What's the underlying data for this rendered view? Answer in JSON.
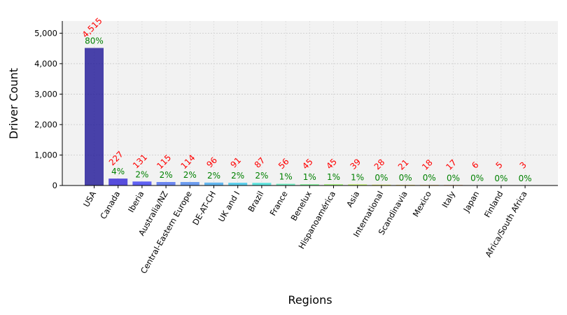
{
  "chart_data": {
    "type": "bar",
    "xlabel": "Regions",
    "ylabel": "Driver Count",
    "ylim": [
      0,
      5400
    ],
    "yticks": [
      0,
      1000,
      2000,
      3000,
      4000,
      5000
    ],
    "ytick_labels": [
      "0",
      "1,000",
      "2,000",
      "3,000",
      "4,000",
      "5,000"
    ],
    "grid": true,
    "categories": [
      "USA",
      "Canada",
      "Iberia",
      "Australia/NZ",
      "Central-Eastern Europe",
      "DE-AT-CH",
      "UK and I",
      "Brazil",
      "France",
      "Benelux",
      "Hispanoamérica",
      "Asia",
      "International",
      "Scandinavia",
      "Mexico",
      "Italy",
      "Japan",
      "Finland",
      "Africa/South Africa"
    ],
    "values": [
      4515,
      227,
      131,
      115,
      114,
      96,
      91,
      87,
      56,
      45,
      45,
      39,
      28,
      21,
      18,
      17,
      6,
      5,
      3
    ],
    "value_labels": [
      "4,515",
      "227",
      "131",
      "115",
      "114",
      "96",
      "91",
      "87",
      "56",
      "45",
      "45",
      "39",
      "28",
      "21",
      "18",
      "17",
      "6",
      "5",
      "3"
    ],
    "percent_labels": [
      "80%",
      "4%",
      "2%",
      "2%",
      "2%",
      "2%",
      "2%",
      "2%",
      "1%",
      "1%",
      "1%",
      "1%",
      "0%",
      "0%",
      "0%",
      "0%",
      "0%",
      "0%",
      "0%"
    ],
    "bar_colors": [
      "#1d1496",
      "#3023d6",
      "#3b3df2",
      "#4a6cf0",
      "#4a86ee",
      "#3ea8ef",
      "#37c6ea",
      "#38e0d8",
      "#52eeb6",
      "#74f48f",
      "#98f96b",
      "#bdf94f",
      "#dced3c",
      "#f3d030",
      "#fbac26",
      "#fb801d",
      "#f25415",
      "#e02a0e",
      "#c80808"
    ],
    "value_label_color": "#ff0000",
    "percent_label_color": "#008000",
    "background_color": "#f2f2f2"
  }
}
